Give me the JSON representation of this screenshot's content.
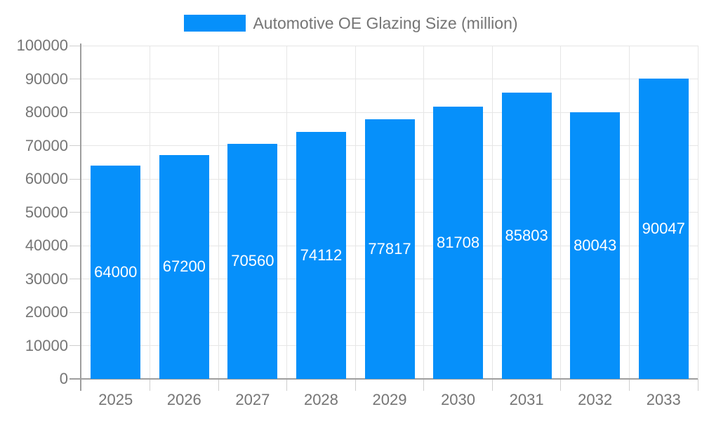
{
  "chart_data": {
    "type": "bar",
    "title": "",
    "legend": [
      "Automotive OE Glazing Size (million)"
    ],
    "legend_position": "top-center",
    "categories": [
      "2025",
      "2026",
      "2027",
      "2028",
      "2029",
      "2030",
      "2031",
      "2032",
      "2033"
    ],
    "values": [
      64000,
      67200,
      70560,
      74112,
      77817,
      81708,
      85803,
      80043,
      90047
    ],
    "value_labels": [
      "64000",
      "67200",
      "70560",
      "74112",
      "77817",
      "81708",
      "85803",
      "80043",
      "90047"
    ],
    "xlabel": "",
    "ylabel": "",
    "ylim": [
      0,
      100000
    ],
    "ytick_step": 10000,
    "y_tick_labels": [
      "0",
      "10000",
      "20000",
      "30000",
      "40000",
      "50000",
      "60000",
      "70000",
      "80000",
      "90000",
      "100000"
    ],
    "grid": true
  },
  "colors": {
    "bar": "#0690fa",
    "value_label": "#ffffff",
    "axis_text": "#757575",
    "grid_line": "#e6e6e6",
    "axis_line": "#9e9e9e",
    "tick_line": "#cfcfcf",
    "background": "#ffffff"
  }
}
